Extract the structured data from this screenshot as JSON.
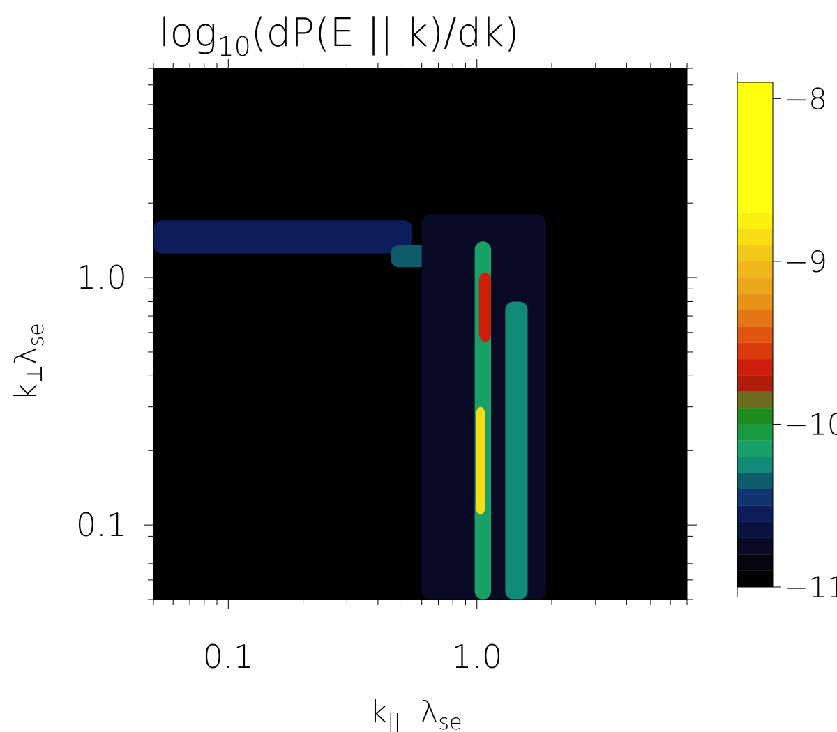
{
  "chart_data": {
    "type": "heatmap",
    "title": {
      "main": "log",
      "sub": "10",
      "rest": "(dP(E || k)/dk)"
    },
    "xlabel": {
      "main": "k",
      "sub1": "||",
      "space": " ",
      "main2": "λ",
      "sub2": "se"
    },
    "ylabel": {
      "main": "k",
      "sub1": "⊥",
      "main2": "λ",
      "sub2": "se"
    },
    "x_scale": "log",
    "y_scale": "log",
    "xlim": [
      0.05,
      7.0
    ],
    "ylim": [
      0.05,
      7.0
    ],
    "x_ticks": [
      {
        "value": 0.1,
        "label": "0.1"
      },
      {
        "value": 1.0,
        "label": "1.0"
      }
    ],
    "y_ticks": [
      {
        "value": 0.1,
        "label": "0.1"
      },
      {
        "value": 1.0,
        "label": "1.0"
      }
    ],
    "background_value": -11,
    "colorbar": {
      "range": [
        -11,
        -7.9
      ],
      "ticks": [
        {
          "value": -8,
          "label": "−8"
        },
        {
          "value": -9,
          "label": "−9"
        },
        {
          "value": -10,
          "label": "−10"
        },
        {
          "value": -11,
          "label": "−11"
        }
      ],
      "levels": [
        {
          "value": -11.0,
          "color": "#000000"
        },
        {
          "value": -10.9,
          "color": "#050510"
        },
        {
          "value": -10.8,
          "color": "#080a26"
        },
        {
          "value": -10.7,
          "color": "#0a1240"
        },
        {
          "value": -10.6,
          "color": "#0d1c5a"
        },
        {
          "value": -10.5,
          "color": "#0f3470"
        },
        {
          "value": -10.4,
          "color": "#0e5b6a"
        },
        {
          "value": -10.3,
          "color": "#128a78"
        },
        {
          "value": -10.2,
          "color": "#18a068"
        },
        {
          "value": -10.1,
          "color": "#1a9a40"
        },
        {
          "value": -10.0,
          "color": "#1f8a1e"
        },
        {
          "value": -9.9,
          "color": "#6f6a20"
        },
        {
          "value": -9.8,
          "color": "#b01c0c"
        },
        {
          "value": -9.7,
          "color": "#cc1e0a"
        },
        {
          "value": -9.6,
          "color": "#d83a0c"
        },
        {
          "value": -9.5,
          "color": "#e05610"
        },
        {
          "value": -9.4,
          "color": "#e47616"
        },
        {
          "value": -9.3,
          "color": "#e8921a"
        },
        {
          "value": -9.2,
          "color": "#eca61c"
        },
        {
          "value": -9.1,
          "color": "#f0b81c"
        },
        {
          "value": -9.0,
          "color": "#f4c81a"
        },
        {
          "value": -8.9,
          "color": "#f8dc14"
        },
        {
          "value": -8.8,
          "color": "#fcf010"
        },
        {
          "value": -8.7,
          "color": "#ffff10"
        }
      ]
    },
    "features": [
      {
        "name": "horizontal-band",
        "x": [
          0.05,
          0.55
        ],
        "y": [
          1.25,
          1.7
        ],
        "value": -10.55
      },
      {
        "name": "band-blob",
        "x": [
          0.45,
          0.75
        ],
        "y": [
          1.1,
          1.35
        ],
        "value": -10.35
      },
      {
        "name": "outer-halo",
        "x": [
          0.6,
          1.9
        ],
        "y": [
          0.05,
          1.8
        ],
        "value": -10.75
      },
      {
        "name": "column-base",
        "x": [
          0.98,
          1.14
        ],
        "y": [
          0.05,
          1.4
        ],
        "value": -10.2
      },
      {
        "name": "side-streak",
        "x": [
          1.3,
          1.6
        ],
        "y": [
          0.05,
          0.8
        ],
        "value": -10.3
      },
      {
        "name": "upper-hot-spot",
        "x": [
          1.02,
          1.14
        ],
        "y": [
          0.55,
          1.05
        ],
        "value": -9.7
      },
      {
        "name": "peak",
        "x": [
          0.99,
          1.08
        ],
        "y": [
          0.11,
          0.3
        ],
        "value": -8.9
      }
    ]
  }
}
